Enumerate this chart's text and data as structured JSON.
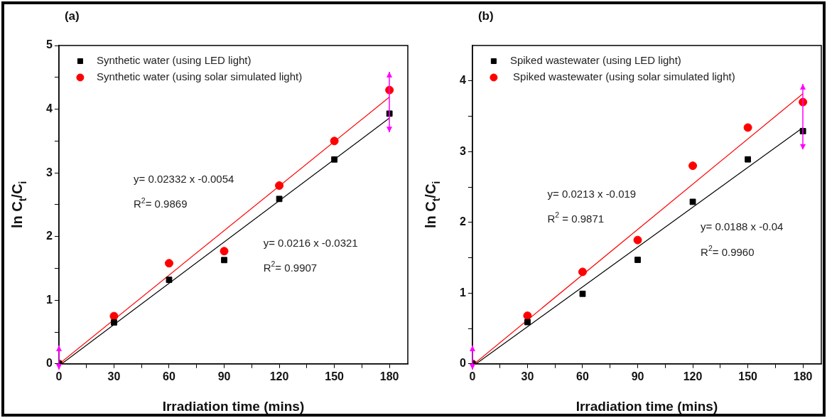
{
  "chart_data": [
    {
      "type": "scatter",
      "title": "(a)",
      "xlabel": "Irradiation time (mins)",
      "ylabel": "ln C$_{t}$/C$_{i}$",
      "legend": "top left",
      "xlim": [
        0,
        190
      ],
      "ylim": [
        0,
        5
      ],
      "xticks": [
        0,
        {
          "value": 15,
          "label": null
        },
        30,
        {
          "value": 45,
          "label": null
        },
        60,
        {
          "value": 75,
          "label": null
        },
        90,
        {
          "value": 105,
          "label": null
        },
        120,
        {
          "value": 135,
          "label": null
        },
        150,
        {
          "value": 165,
          "label": null
        },
        180
      ],
      "yticks": [
        0,
        {
          "value": 0.5,
          "label": null
        },
        1,
        {
          "value": 1.5,
          "label": null
        },
        2,
        {
          "value": 2.5,
          "label": null
        },
        3,
        {
          "value": 3.5,
          "label": null
        },
        4,
        {
          "value": 4.5,
          "label": null
        },
        5
      ],
      "x": [
        0,
        30,
        60,
        90,
        120,
        150,
        180
      ],
      "series": [
        {
          "name": "Synthetic water (using LED light)",
          "color": "#000000",
          "marker": "square",
          "values": [
            0,
            0.65,
            1.32,
            1.63,
            2.59,
            3.21,
            3.93
          ]
        },
        {
          "name": "Synthetic water (using solar simulated light)",
          "color": "#ff0000",
          "marker": "circle",
          "values": [
            0,
            0.75,
            1.58,
            1.77,
            2.8,
            3.5,
            4.3
          ]
        },
        {
          "type": "line",
          "color": "#000000",
          "x": [
            1.5,
            180
          ],
          "values": [
            0,
            3.86
          ]
        },
        {
          "type": "line",
          "color": "#ff0000",
          "x": [
            0.2,
            180
          ],
          "values": [
            0,
            4.19
          ]
        }
      ],
      "annotations": [
        "y= 0.02332 x -0.0054",
        "R$^{2}$= 0.9869",
        "y= 0.0216 x -0.0321",
        "R$^{2}$= 0.9907"
      ]
    },
    {
      "type": "scatter",
      "title": "(b)",
      "xlabel": "Irradiation time (mins)",
      "ylabel": "ln C$_{t}$/C$_{i}$",
      "legend": "top left",
      "xlim": [
        0,
        190
      ],
      "ylim": [
        0,
        4.5
      ],
      "xticks": [
        0,
        {
          "value": 15,
          "label": null
        },
        30,
        {
          "value": 45,
          "label": null
        },
        60,
        {
          "value": 75,
          "label": null
        },
        90,
        {
          "value": 105,
          "label": null
        },
        120,
        {
          "value": 135,
          "label": null
        },
        150,
        {
          "value": 165,
          "label": null
        },
        180
      ],
      "yticks": [
        0,
        {
          "value": 0.5,
          "label": null
        },
        1,
        {
          "value": 1.5,
          "label": null
        },
        2,
        {
          "value": 2.5,
          "label": null
        },
        3,
        {
          "value": 3.5,
          "label": null
        },
        4
      ],
      "x": [
        0,
        30,
        60,
        90,
        120,
        150,
        180
      ],
      "series": [
        {
          "name": "Spiked wastewater (using LED light)",
          "color": "#000000",
          "marker": "square",
          "values": [
            0,
            0.59,
            0.99,
            1.47,
            2.29,
            2.89,
            3.29
          ]
        },
        {
          "name": " Spiked wastewater (using solar simulated light)",
          "color": "#ff0000",
          "marker": "circle",
          "values": [
            0,
            0.68,
            1.3,
            1.75,
            2.8,
            3.34,
            3.7
          ]
        },
        {
          "type": "line",
          "color": "#000000",
          "x": [
            2,
            180
          ],
          "values": [
            0,
            3.34
          ]
        },
        {
          "type": "line",
          "color": "#ff0000",
          "x": [
            1,
            180
          ],
          "values": [
            0,
            3.82
          ]
        }
      ],
      "annotations": [
        "y= 0.0213 x -0.019",
        "R$^{2}$ = 0.9871",
        "y= 0.0188 x -0.04",
        "R$^{2}$= 0.9960"
      ]
    }
  ]
}
